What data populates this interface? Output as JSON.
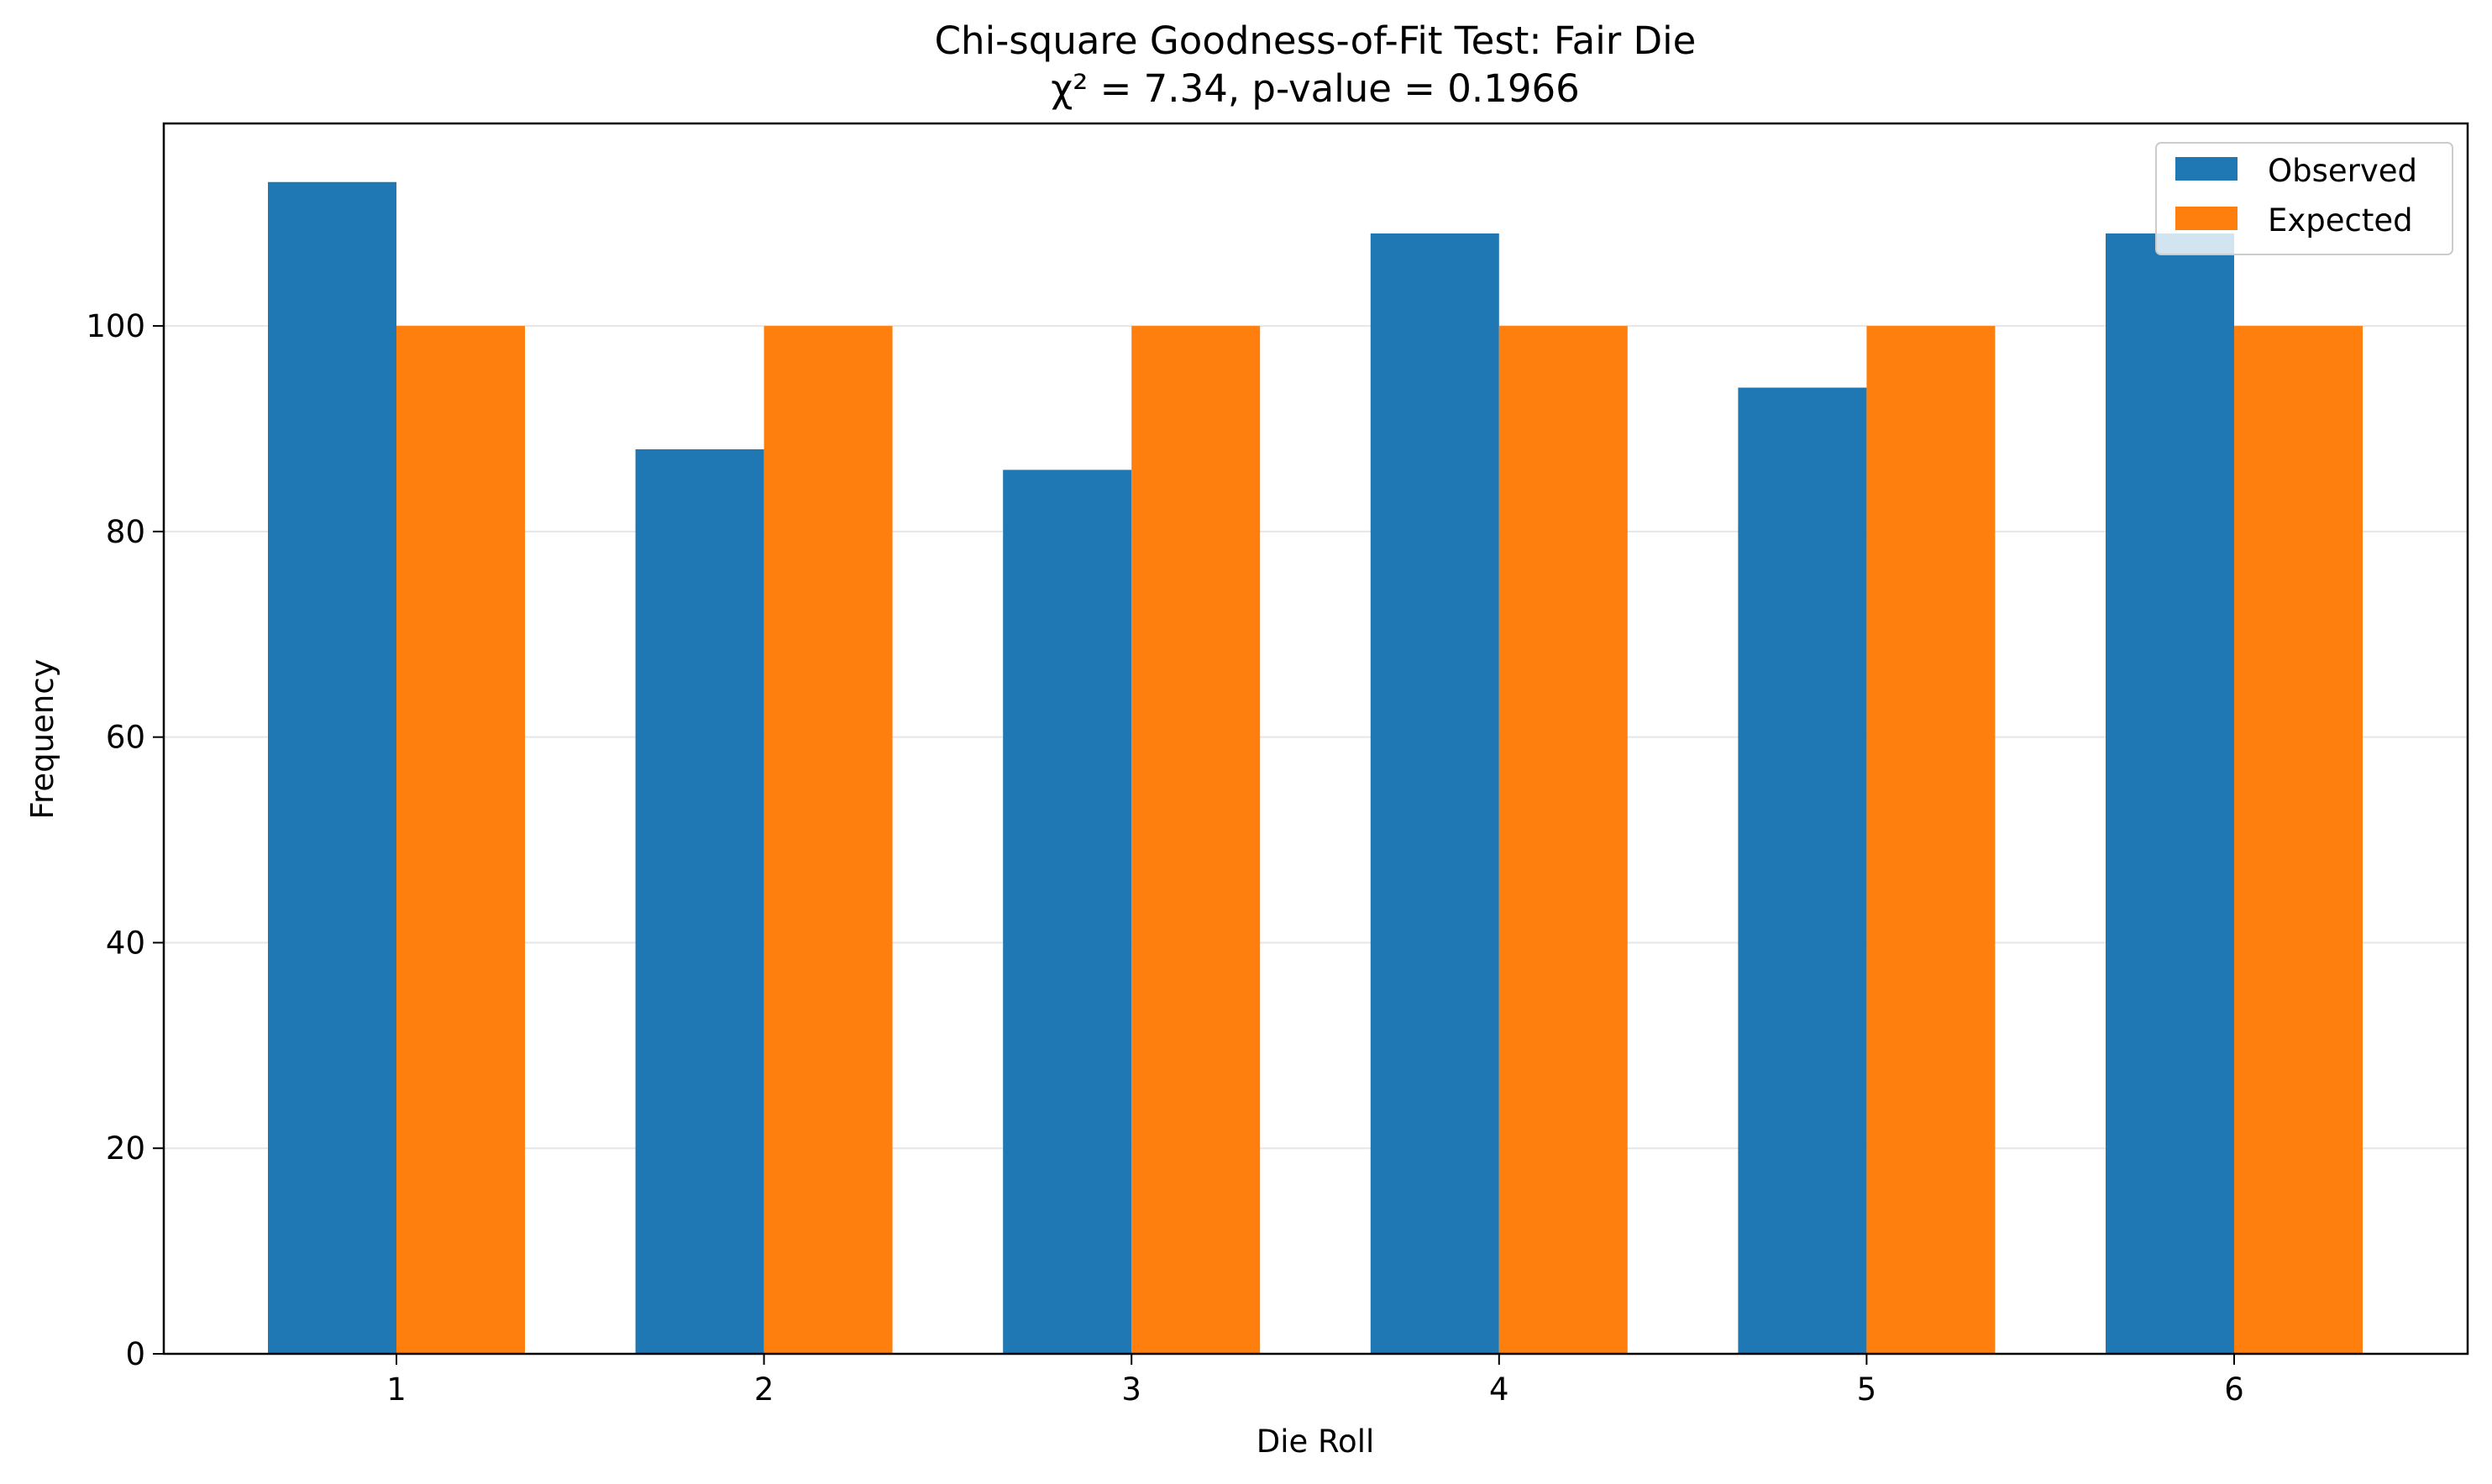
{
  "chart_data": {
    "type": "bar",
    "title": "Chi-square Goodness-of-Fit Test: Fair Die",
    "subtitle": "χ² = 7.34, p-value = 0.1966",
    "xlabel": "Die Roll",
    "ylabel": "Frequency",
    "categories": [
      "1",
      "2",
      "3",
      "4",
      "5",
      "6"
    ],
    "series": [
      {
        "name": "Observed",
        "color": "#1f77b4",
        "values": [
          114,
          88,
          86,
          109,
          94,
          109
        ]
      },
      {
        "name": "Expected",
        "color": "#ff7f0e",
        "values": [
          100,
          100,
          100,
          100,
          100,
          100
        ]
      }
    ],
    "ylim": [
      0,
      119.7
    ],
    "yticks": [
      "0",
      "20",
      "40",
      "60",
      "80",
      "100"
    ],
    "grid": "y",
    "legend_position": "top-right"
  }
}
